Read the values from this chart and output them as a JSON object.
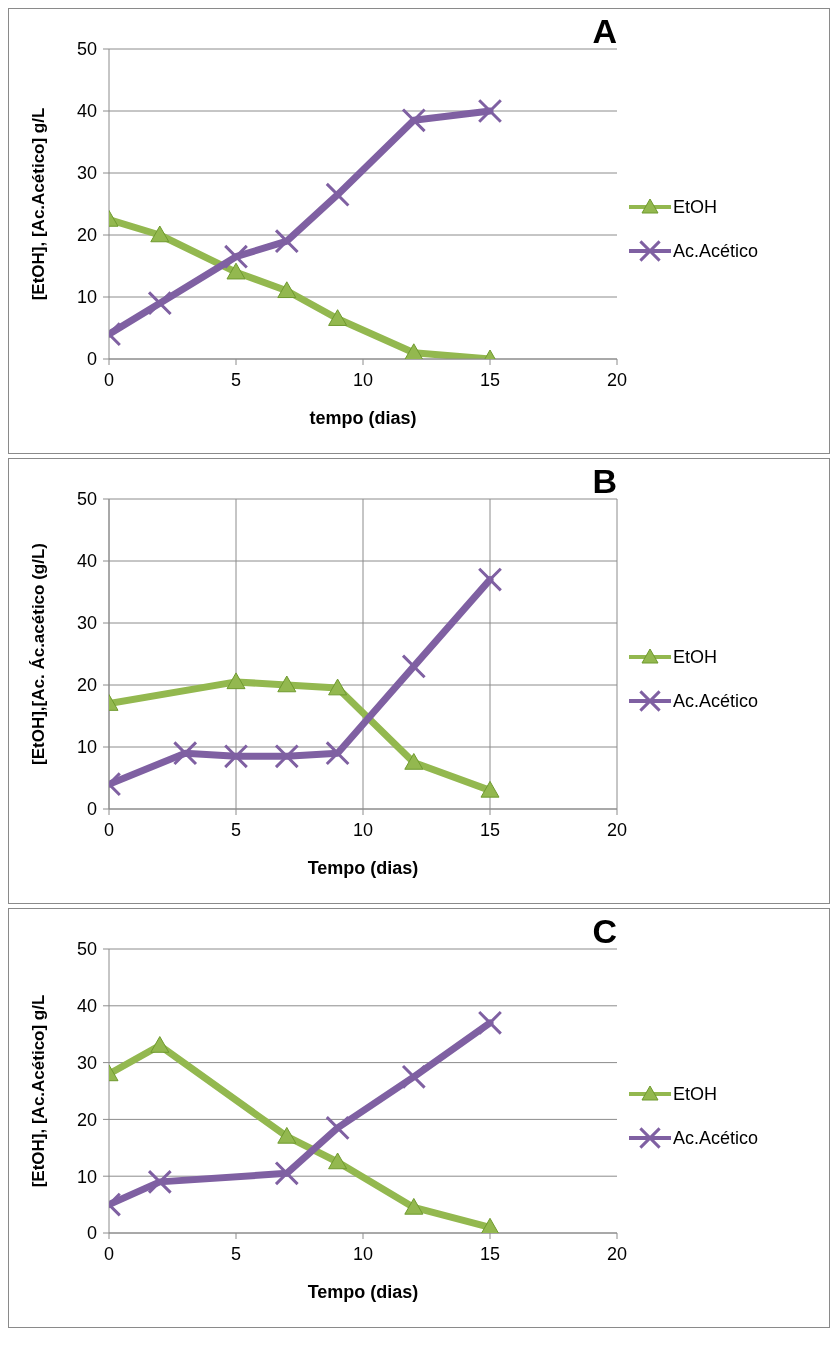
{
  "chart_data": [
    {
      "type": "line",
      "title": "A",
      "xlabel": "tempo (dias)",
      "ylabel": "[EtOH], [Ac.Acético] g/L",
      "xlim": [
        0,
        20
      ],
      "xticks": [
        0,
        5,
        10,
        15,
        20
      ],
      "ylim": [
        0,
        50
      ],
      "yticks": [
        0,
        10,
        20,
        30,
        40,
        50
      ],
      "grid": "y",
      "legend": "right",
      "line_style": "solid",
      "series": [
        {
          "name": "EtOH",
          "color": "#93b84f",
          "marker": "triangle",
          "x": [
            0,
            2,
            5,
            7,
            9,
            12,
            15
          ],
          "values": [
            22.5,
            20,
            14,
            11,
            6.5,
            1,
            0
          ]
        },
        {
          "name": "Ac.Acético",
          "color": "#7f60a2",
          "marker": "cross",
          "x": [
            0,
            2,
            5,
            7,
            9,
            12,
            15
          ],
          "values": [
            4,
            9,
            16.5,
            19,
            26.5,
            38.5,
            40
          ]
        }
      ]
    },
    {
      "type": "line",
      "title": "B",
      "xlabel": "Tempo (dias)",
      "ylabel": "[EtOH],[Ac. Ác.acético (g/L)",
      "xlim": [
        0,
        20
      ],
      "xticks": [
        0,
        5,
        10,
        15,
        20
      ],
      "ylim": [
        0,
        50
      ],
      "yticks": [
        0,
        10,
        20,
        30,
        40,
        50
      ],
      "grid": true,
      "legend": "right",
      "line_style": "solid",
      "series": [
        {
          "name": "EtOH",
          "color": "#93b84f",
          "marker": "triangle",
          "x": [
            0,
            5,
            7,
            9,
            12,
            15
          ],
          "values": [
            17,
            20.5,
            20,
            19.5,
            7.5,
            3
          ]
        },
        {
          "name": "Ac.Acético",
          "color": "#7f60a2",
          "marker": "cross",
          "x": [
            0,
            3,
            5,
            7,
            9,
            12,
            15
          ],
          "values": [
            4,
            9,
            8.5,
            8.5,
            9,
            23,
            37
          ]
        }
      ]
    },
    {
      "type": "line",
      "title": "C",
      "xlabel": "Tempo (dias)",
      "ylabel": "[EtOH], [Ac.Acético] g/L",
      "xlim": [
        0,
        20
      ],
      "xticks": [
        0,
        5,
        10,
        15,
        20
      ],
      "ylim": [
        0,
        50
      ],
      "yticks": [
        0,
        10,
        20,
        30,
        40,
        50
      ],
      "grid": "y",
      "legend": "right",
      "line_style": "solid",
      "series": [
        {
          "name": "EtOH",
          "color": "#93b84f",
          "marker": "triangle",
          "x": [
            0,
            2,
            7,
            9,
            12,
            15
          ],
          "values": [
            28,
            33,
            17,
            12.5,
            4.5,
            1
          ]
        },
        {
          "name": "Ac.Acético",
          "color": "#7f60a2",
          "marker": "cross",
          "x": [
            0,
            2,
            7,
            9,
            12,
            15
          ],
          "values": [
            5,
            9,
            10.5,
            18.5,
            27.5,
            37
          ]
        }
      ]
    }
  ]
}
